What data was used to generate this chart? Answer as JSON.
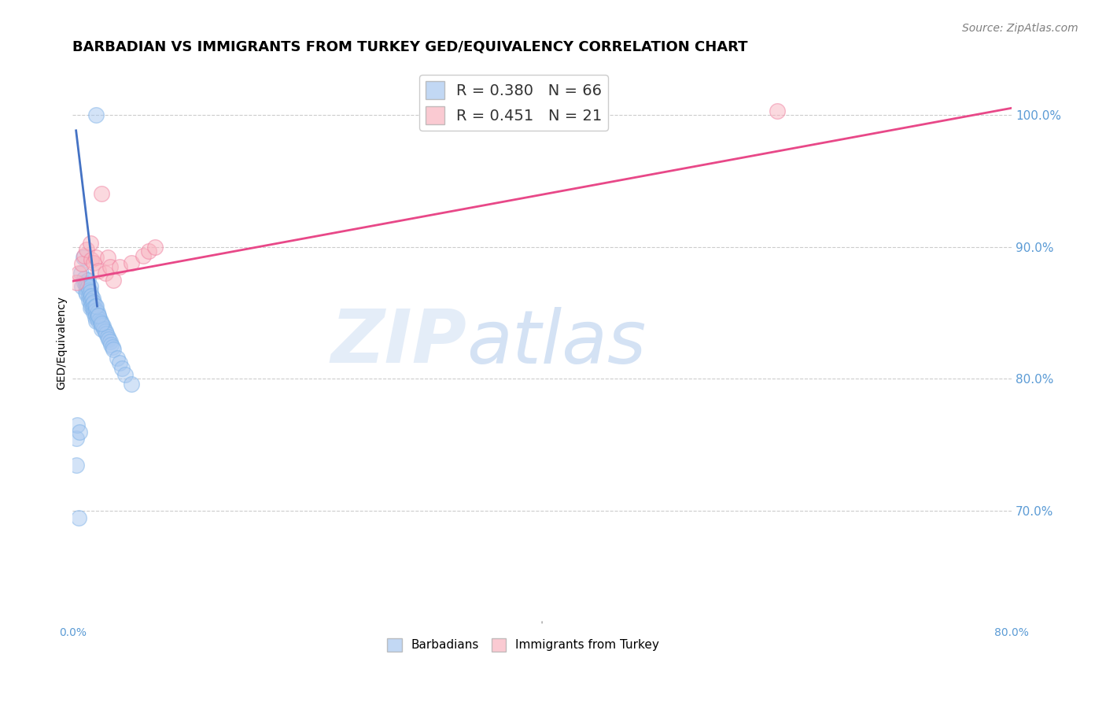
{
  "title": "BARBADIAN VS IMMIGRANTS FROM TURKEY GED/EQUIVALENCY CORRELATION CHART",
  "source": "Source: ZipAtlas.com",
  "ylabel": "GED/Equivalency",
  "ytick_labels": [
    "100.0%",
    "90.0%",
    "80.0%",
    "70.0%"
  ],
  "ytick_values": [
    1.0,
    0.9,
    0.8,
    0.7
  ],
  "xlim": [
    0.0,
    0.8
  ],
  "ylim": [
    0.615,
    1.04
  ],
  "legend_entries": [
    {
      "label": "R = 0.380   N = 66",
      "color": "#a8c8f0"
    },
    {
      "label": "R = 0.451   N = 21",
      "color": "#f9b4c0"
    }
  ],
  "barbadian_scatter_x": [
    0.003,
    0.005,
    0.007,
    0.008,
    0.009,
    0.01,
    0.01,
    0.011,
    0.011,
    0.012,
    0.012,
    0.012,
    0.013,
    0.013,
    0.014,
    0.014,
    0.014,
    0.015,
    0.015,
    0.015,
    0.015,
    0.015,
    0.016,
    0.016,
    0.016,
    0.017,
    0.017,
    0.017,
    0.018,
    0.018,
    0.018,
    0.019,
    0.019,
    0.019,
    0.02,
    0.02,
    0.02,
    0.021,
    0.021,
    0.022,
    0.022,
    0.023,
    0.024,
    0.025,
    0.025,
    0.026,
    0.027,
    0.028,
    0.029,
    0.03,
    0.031,
    0.032,
    0.033,
    0.034,
    0.035,
    0.038,
    0.04,
    0.042,
    0.045,
    0.05,
    0.003,
    0.004,
    0.006,
    0.02,
    0.022,
    0.025
  ],
  "barbadian_scatter_y": [
    0.735,
    0.695,
    0.88,
    0.87,
    0.892,
    0.873,
    0.876,
    0.871,
    0.866,
    0.872,
    0.868,
    0.864,
    0.875,
    0.87,
    0.867,
    0.863,
    0.859,
    0.87,
    0.866,
    0.862,
    0.858,
    0.854,
    0.863,
    0.859,
    0.855,
    0.861,
    0.857,
    0.853,
    0.858,
    0.854,
    0.85,
    0.855,
    0.851,
    0.847,
    0.852,
    0.848,
    0.844,
    0.85,
    0.846,
    0.848,
    0.844,
    0.845,
    0.843,
    0.841,
    0.838,
    0.84,
    0.838,
    0.836,
    0.834,
    0.832,
    0.83,
    0.828,
    0.826,
    0.824,
    0.822,
    0.816,
    0.812,
    0.808,
    0.803,
    0.796,
    0.755,
    0.765,
    0.76,
    0.855,
    0.848,
    0.842
  ],
  "barbadian_scatter_x2": [
    0.02
  ],
  "barbadian_scatter_y2": [
    1.0
  ],
  "turkey_scatter_x": [
    0.003,
    0.005,
    0.008,
    0.01,
    0.012,
    0.015,
    0.016,
    0.018,
    0.02,
    0.022,
    0.025,
    0.028,
    0.03,
    0.032,
    0.035,
    0.04,
    0.05,
    0.06,
    0.065,
    0.07,
    0.6
  ],
  "turkey_scatter_y": [
    0.873,
    0.88,
    0.887,
    0.893,
    0.898,
    0.903,
    0.89,
    0.888,
    0.892,
    0.882,
    0.94,
    0.88,
    0.892,
    0.885,
    0.875,
    0.885,
    0.888,
    0.893,
    0.897,
    0.9,
    1.003
  ],
  "barbadian_line_x": [
    0.003,
    0.021
  ],
  "barbadian_line_y": [
    0.988,
    0.855
  ],
  "turkey_line_x": [
    0.0,
    0.8
  ],
  "turkey_line_y": [
    0.874,
    1.005
  ],
  "watermark_zip": "ZIP",
  "watermark_atlas": "atlas",
  "scatter_size": 200,
  "barbadian_color": "#a8c8f0",
  "turkey_color": "#f9b4c0",
  "barbadian_edge_color": "#7fb3e8",
  "turkey_edge_color": "#f080a0",
  "barbadian_line_color": "#4472c4",
  "turkey_line_color": "#e84888",
  "background_color": "#ffffff",
  "grid_color": "#cccccc",
  "right_tick_color": "#5b9bd5",
  "title_fontsize": 13,
  "axis_label_fontsize": 10,
  "legend_fontsize": 14,
  "source_fontsize": 10
}
